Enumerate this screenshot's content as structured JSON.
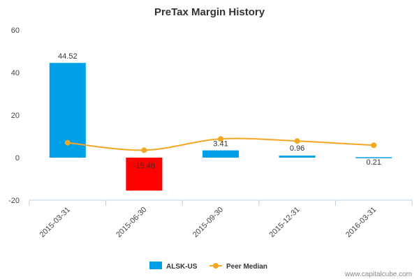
{
  "chart_data": {
    "type": "bar",
    "title": "PreTax Margin History",
    "categories": [
      "2015-03-31",
      "2015-06-30",
      "2015-09-30",
      "2015-12-31",
      "2016-03-31"
    ],
    "series": [
      {
        "name": "ALSK-US",
        "type": "bar",
        "values": [
          44.52,
          -15.48,
          3.41,
          0.96,
          0.21
        ],
        "labels": [
          "44.52",
          "-15.48",
          "3.41",
          "0.96",
          "0.21"
        ],
        "color": "#00a0e9",
        "negative_color": "#ff0000"
      },
      {
        "name": "Peer Median",
        "type": "line",
        "values": [
          7.0,
          3.5,
          8.8,
          7.8,
          5.8
        ],
        "color": "#f5a623"
      }
    ],
    "yticks": [
      -20,
      0,
      20,
      40,
      60
    ],
    "ylim": [
      -20,
      60
    ],
    "legend_position": "bottom",
    "grid": false
  },
  "credit": "www.capitalcube.com"
}
